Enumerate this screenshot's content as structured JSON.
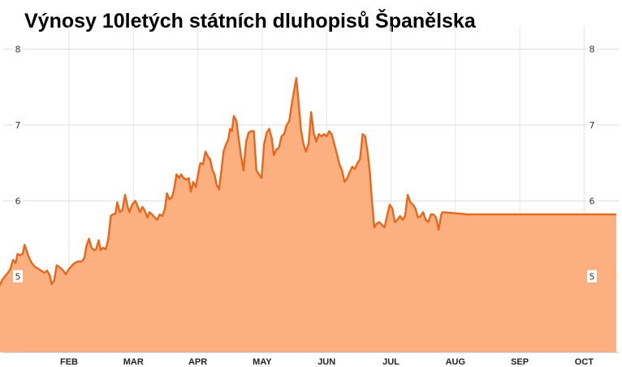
{
  "chart_data": {
    "type": "area",
    "title": "Výnosy 10letých státních dluhopisů Španělska",
    "xlabel": "",
    "ylabel": "",
    "ylim": [
      4.0,
      8.2
    ],
    "yticks": [
      5,
      6,
      7,
      8
    ],
    "y_axis_sides": "both",
    "grid": true,
    "x_months": [
      {
        "label": "FEB",
        "t": 1.0
      },
      {
        "label": "MAR",
        "t": 2.0
      },
      {
        "label": "APR",
        "t": 3.0
      },
      {
        "label": "MAY",
        "t": 4.0
      },
      {
        "label": "JUN",
        "t": 5.0
      },
      {
        "label": "JUL",
        "t": 6.0
      },
      {
        "label": "AUG",
        "t": 7.0
      },
      {
        "label": "SEP",
        "t": 8.0
      },
      {
        "label": "OCT",
        "t": 9.0
      }
    ],
    "xlim": [
      -0.97,
      9.5
    ],
    "series": [
      {
        "color_line": "#e8671c",
        "color_fill": "#fcaf7f",
        "points": [
          [
            -0.97,
            5.12
          ],
          [
            -0.9,
            5.35
          ],
          [
            -0.84,
            5.55
          ],
          [
            -0.79,
            5.68
          ],
          [
            -0.75,
            5.72
          ],
          [
            -0.71,
            5.58
          ],
          [
            -0.66,
            5.48
          ],
          [
            -0.62,
            5.32
          ],
          [
            -0.58,
            5.15
          ],
          [
            -0.54,
            5.25
          ],
          [
            -0.49,
            5.2
          ],
          [
            -0.44,
            5.15
          ],
          [
            -0.4,
            5.2
          ],
          [
            -0.37,
            5.45
          ],
          [
            -0.33,
            5.43
          ],
          [
            -0.28,
            5.4
          ],
          [
            -0.24,
            5.28
          ],
          [
            -0.2,
            4.97
          ],
          [
            -0.16,
            5.05
          ],
          [
            -0.12,
            5.0
          ],
          [
            -0.08,
            4.88
          ],
          [
            -0.04,
            4.95
          ],
          [
            0.0,
            5.0
          ],
          [
            0.05,
            5.05
          ],
          [
            0.09,
            5.1
          ],
          [
            0.13,
            5.22
          ],
          [
            0.17,
            5.18
          ],
          [
            0.2,
            5.3
          ],
          [
            0.24,
            5.28
          ],
          [
            0.28,
            5.3
          ],
          [
            0.31,
            5.42
          ],
          [
            0.35,
            5.32
          ],
          [
            0.38,
            5.25
          ],
          [
            0.42,
            5.18
          ],
          [
            0.47,
            5.13
          ],
          [
            0.53,
            5.1
          ],
          [
            0.58,
            5.07
          ],
          [
            0.62,
            5.05
          ],
          [
            0.66,
            5.08
          ],
          [
            0.7,
            5.02
          ],
          [
            0.73,
            4.9
          ],
          [
            0.77,
            4.95
          ],
          [
            0.81,
            5.15
          ],
          [
            0.86,
            5.12
          ],
          [
            0.91,
            5.08
          ],
          [
            0.95,
            5.03
          ],
          [
            1.0,
            5.1
          ],
          [
            1.05,
            5.15
          ],
          [
            1.09,
            5.18
          ],
          [
            1.14,
            5.2
          ],
          [
            1.2,
            5.2
          ],
          [
            1.24,
            5.25
          ],
          [
            1.27,
            5.4
          ],
          [
            1.31,
            5.5
          ],
          [
            1.35,
            5.38
          ],
          [
            1.39,
            5.35
          ],
          [
            1.42,
            5.36
          ],
          [
            1.46,
            5.48
          ],
          [
            1.49,
            5.35
          ],
          [
            1.53,
            5.38
          ],
          [
            1.57,
            5.36
          ],
          [
            1.61,
            5.5
          ],
          [
            1.65,
            5.8
          ],
          [
            1.68,
            5.82
          ],
          [
            1.72,
            5.83
          ],
          [
            1.75,
            5.98
          ],
          [
            1.79,
            5.85
          ],
          [
            1.83,
            5.88
          ],
          [
            1.87,
            6.08
          ],
          [
            1.91,
            5.92
          ],
          [
            1.94,
            5.85
          ],
          [
            1.98,
            5.95
          ],
          [
            2.03,
            6.0
          ],
          [
            2.07,
            5.92
          ],
          [
            2.1,
            5.85
          ],
          [
            2.14,
            5.92
          ],
          [
            2.17,
            5.88
          ],
          [
            2.22,
            5.78
          ],
          [
            2.25,
            5.85
          ],
          [
            2.29,
            5.82
          ],
          [
            2.33,
            5.78
          ],
          [
            2.37,
            5.75
          ],
          [
            2.41,
            5.82
          ],
          [
            2.45,
            5.8
          ],
          [
            2.49,
            5.9
          ],
          [
            2.52,
            6.1
          ],
          [
            2.56,
            6.02
          ],
          [
            2.6,
            6.05
          ],
          [
            2.63,
            6.15
          ],
          [
            2.67,
            6.35
          ],
          [
            2.71,
            6.3
          ],
          [
            2.74,
            6.35
          ],
          [
            2.78,
            6.3
          ],
          [
            2.82,
            6.28
          ],
          [
            2.86,
            6.3
          ],
          [
            2.89,
            6.12
          ],
          [
            2.93,
            6.25
          ],
          [
            2.97,
            6.18
          ],
          [
            3.01,
            6.38
          ],
          [
            3.04,
            6.5
          ],
          [
            3.08,
            6.48
          ],
          [
            3.12,
            6.65
          ],
          [
            3.16,
            6.58
          ],
          [
            3.19,
            6.55
          ],
          [
            3.23,
            6.4
          ],
          [
            3.26,
            6.35
          ],
          [
            3.29,
            6.22
          ],
          [
            3.33,
            6.15
          ],
          [
            3.36,
            6.35
          ],
          [
            3.4,
            6.65
          ],
          [
            3.44,
            6.75
          ],
          [
            3.47,
            6.8
          ],
          [
            3.5,
            6.95
          ],
          [
            3.53,
            6.92
          ],
          [
            3.56,
            7.12
          ],
          [
            3.6,
            7.05
          ],
          [
            3.63,
            6.85
          ],
          [
            3.67,
            6.6
          ],
          [
            3.71,
            6.4
          ],
          [
            3.75,
            6.78
          ],
          [
            3.79,
            6.9
          ],
          [
            3.83,
            6.92
          ],
          [
            3.87,
            6.92
          ],
          [
            3.91,
            6.4
          ],
          [
            3.95,
            6.35
          ],
          [
            3.99,
            6.3
          ],
          [
            4.03,
            6.75
          ],
          [
            4.07,
            6.9
          ],
          [
            4.11,
            6.95
          ],
          [
            4.15,
            6.82
          ],
          [
            4.18,
            6.6
          ],
          [
            4.22,
            6.68
          ],
          [
            4.26,
            6.7
          ],
          [
            4.3,
            6.85
          ],
          [
            4.34,
            6.88
          ],
          [
            4.38,
            7.0
          ],
          [
            4.42,
            7.05
          ],
          [
            4.46,
            7.28
          ],
          [
            4.5,
            7.48
          ],
          [
            4.53,
            7.62
          ],
          [
            4.56,
            7.35
          ],
          [
            4.6,
            6.95
          ],
          [
            4.64,
            6.75
          ],
          [
            4.68,
            6.65
          ],
          [
            4.72,
            6.75
          ],
          [
            4.76,
            7.17
          ],
          [
            4.8,
            6.9
          ],
          [
            4.84,
            6.78
          ],
          [
            4.88,
            6.88
          ],
          [
            4.92,
            6.85
          ],
          [
            4.96,
            6.88
          ],
          [
            5.0,
            6.85
          ],
          [
            5.04,
            6.92
          ],
          [
            5.08,
            6.88
          ],
          [
            5.12,
            6.75
          ],
          [
            5.16,
            6.62
          ],
          [
            5.2,
            6.48
          ],
          [
            5.24,
            6.4
          ],
          [
            5.28,
            6.25
          ],
          [
            5.32,
            6.3
          ],
          [
            5.36,
            6.38
          ],
          [
            5.4,
            6.45
          ],
          [
            5.44,
            6.42
          ],
          [
            5.48,
            6.5
          ],
          [
            5.52,
            6.55
          ],
          [
            5.56,
            6.88
          ],
          [
            5.6,
            6.85
          ],
          [
            5.64,
            6.62
          ],
          [
            5.67,
            6.4
          ],
          [
            5.7,
            6.05
          ],
          [
            5.74,
            5.65
          ],
          [
            5.78,
            5.7
          ],
          [
            5.82,
            5.72
          ],
          [
            5.86,
            5.68
          ],
          [
            5.9,
            5.65
          ],
          [
            5.94,
            5.8
          ],
          [
            5.98,
            5.95
          ],
          [
            6.02,
            5.9
          ],
          [
            6.06,
            5.72
          ],
          [
            6.1,
            5.75
          ],
          [
            6.14,
            5.8
          ],
          [
            6.18,
            5.75
          ],
          [
            6.22,
            5.8
          ],
          [
            6.26,
            6.08
          ],
          [
            6.3,
            5.98
          ],
          [
            6.34,
            5.95
          ],
          [
            6.38,
            5.9
          ],
          [
            6.42,
            5.78
          ],
          [
            6.46,
            5.8
          ],
          [
            6.5,
            5.85
          ],
          [
            6.54,
            5.75
          ],
          [
            6.58,
            5.72
          ],
          [
            6.62,
            5.82
          ],
          [
            6.66,
            5.82
          ],
          [
            6.7,
            5.78
          ],
          [
            6.74,
            5.62
          ],
          [
            6.78,
            5.82
          ],
          [
            6.8,
            5.85
          ],
          [
            7.2,
            5.82
          ],
          [
            7.6,
            5.82
          ],
          [
            8.0,
            5.82
          ],
          [
            8.4,
            5.82
          ],
          [
            8.8,
            5.82
          ],
          [
            9.2,
            5.82
          ],
          [
            9.5,
            5.82
          ]
        ]
      }
    ]
  }
}
